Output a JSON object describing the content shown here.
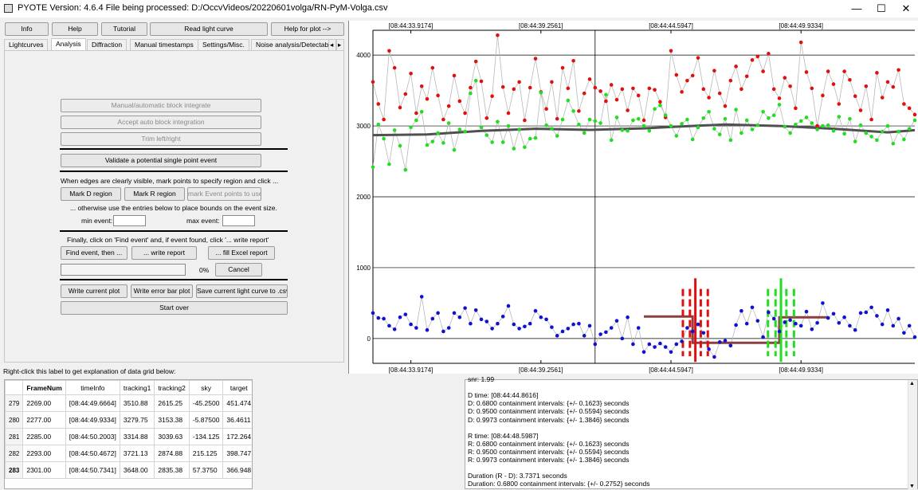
{
  "window": {
    "title": "PYOTE Version: 4.6.4  File being processed: D:/OccvVideos/20220601volga/RN-PyM-Volga.csv",
    "minimize": "—",
    "maximize": "☐",
    "close": "✕"
  },
  "toolbar": {
    "info": "Info",
    "help": "Help",
    "tutorial": "Tutorial",
    "read_light_curve": "Read light curve",
    "help_for_plot": "Help for plot -->"
  },
  "tabs": [
    "Lightcurves",
    "Analysis",
    "Diffraction",
    "Manual timestamps",
    "Settings/Misc.",
    "Noise analysis/Detectabili"
  ],
  "tab_scroll_left": "◂",
  "tab_scroll_right": "▸",
  "analysis": {
    "block_integrate": "Manual/automatic block integrate",
    "accept_auto_block": "Accept auto block integration",
    "trim": "Trim left/right",
    "validate_single": "Validate a potential single point event",
    "edges_text": "When edges are clearly visible, mark points to specify region and click ...",
    "mark_d": "Mark D region",
    "mark_r": "Mark R region",
    "mark_event": "mark Event points to use",
    "otherwise_text": "... otherwise use the entries below to place bounds on the event size.",
    "min_event_label": "min event:",
    "min_event_value": "",
    "max_event_label": "max event:",
    "max_event_value": "",
    "finally_text": "Finally, click on 'Find event' and, if event found, click '... write report'",
    "find_event": "Find event, then ...",
    "write_report": "... write report",
    "fill_excel": "... fill Excel report",
    "progress_percent": "0%",
    "progress_value": 0,
    "cancel": "Cancel",
    "write_plot": "Write current plot",
    "write_error_bar": "Write error bar plot",
    "save_csv": "Save current light curve to .csv",
    "start_over": "Start over"
  },
  "grid_label": "Right-click this label to get explanation of data grid below:",
  "grid": {
    "columns": [
      "FrameNum",
      "timeInfo",
      "tracking1",
      "tracking2",
      "sky",
      "target"
    ],
    "rows": [
      {
        "n": "279",
        "cells": [
          "2269.00",
          "[08:44:49.6664]",
          "3510.88",
          "2615.25",
          "-45.2500",
          "451.474"
        ]
      },
      {
        "n": "280",
        "cells": [
          "2277.00",
          "[08:44:49.9334]",
          "3279.75",
          "3153.38",
          "-5.87500",
          "36.4611"
        ]
      },
      {
        "n": "281",
        "cells": [
          "2285.00",
          "[08:44:50.2003]",
          "3314.88",
          "3039.63",
          "-134.125",
          "172.264"
        ]
      },
      {
        "n": "282",
        "cells": [
          "2293.00",
          "[08:44:50.4672]",
          "3721.13",
          "2874.88",
          "215.125",
          "398.747"
        ]
      },
      {
        "n": "283",
        "cells": [
          "2301.00",
          "[08:44:50.7341]",
          "3648.00",
          "2835.38",
          "57.3750",
          "366.948"
        ]
      }
    ]
  },
  "report": {
    "lines": [
      "snr: 1.99",
      "",
      "D time: [08:44:44.8616]",
      "D: 0.6800 containment intervals: {+/- 0.1623} seconds",
      "D: 0.9500 containment intervals: {+/- 0.5594} seconds",
      "D: 0.9973 containment intervals: {+/- 1.3846} seconds",
      "",
      "R time: [08:44:48.5987]",
      "R: 0.6800 containment intervals: {+/- 0.1623} seconds",
      "R: 0.9500 containment intervals: {+/- 0.5594} seconds",
      "R: 0.9973 containment intervals: {+/- 1.3846} seconds",
      "",
      "Duration (R - D): 3.7371 seconds",
      "Duration: 0.6800 containment intervals: {+/- 0.2752} seconds"
    ]
  },
  "chart_data": {
    "type": "scatter",
    "x_ticks": [
      "[08:44:33.9174]",
      "[08:44:39.2561]",
      "[08:44:44.5947]",
      "[08:44:49.9334]"
    ],
    "y_ticks": [
      0,
      1000,
      2000,
      3000,
      4000
    ],
    "xlim": [
      0,
      100
    ],
    "ylim": [
      -350,
      4350
    ],
    "colors": {
      "red": "#e01010",
      "green": "#22dd22",
      "blue": "#1010d0",
      "grey": "#b8b8b8",
      "smooth": "#505050",
      "step": "#8a4040"
    },
    "red_points": [
      [
        0,
        3620
      ],
      [
        1,
        3310
      ],
      [
        2,
        3090
      ],
      [
        3,
        4060
      ],
      [
        4,
        3820
      ],
      [
        5,
        3260
      ],
      [
        6,
        3450
      ],
      [
        7,
        3740
      ],
      [
        8,
        3180
      ],
      [
        9,
        3560
      ],
      [
        10,
        3380
      ],
      [
        11,
        3820
      ],
      [
        12,
        3430
      ],
      [
        13,
        3090
      ],
      [
        14,
        3280
      ],
      [
        15,
        3710
      ],
      [
        16,
        3350
      ],
      [
        17,
        3180
      ],
      [
        18,
        3540
      ],
      [
        19,
        3910
      ],
      [
        20,
        3630
      ],
      [
        21,
        3110
      ],
      [
        22,
        3420
      ],
      [
        23,
        4280
      ],
      [
        24,
        3550
      ],
      [
        25,
        3180
      ],
      [
        26,
        3520
      ],
      [
        27,
        3620
      ],
      [
        28,
        3080
      ],
      [
        29,
        3540
      ],
      [
        30,
        3950
      ],
      [
        31,
        3480
      ],
      [
        32,
        3240
      ],
      [
        33,
        3620
      ],
      [
        34,
        3100
      ],
      [
        35,
        3820
      ],
      [
        36,
        3530
      ],
      [
        37,
        3920
      ],
      [
        38,
        3210
      ],
      [
        39,
        3460
      ],
      [
        40,
        3660
      ],
      [
        41,
        3540
      ],
      [
        42,
        3490
      ],
      [
        43,
        3350
      ],
      [
        44,
        3580
      ],
      [
        45,
        3370
      ],
      [
        46,
        3520
      ],
      [
        47,
        3220
      ],
      [
        48,
        3530
      ],
      [
        49,
        3430
      ],
      [
        50,
        3080
      ],
      [
        51,
        3530
      ],
      [
        52,
        3510
      ],
      [
        53,
        3340
      ],
      [
        54,
        3120
      ],
      [
        55,
        4060
      ],
      [
        56,
        3720
      ],
      [
        57,
        3480
      ],
      [
        58,
        3640
      ],
      [
        59,
        3710
      ],
      [
        60,
        3960
      ],
      [
        61,
        3520
      ],
      [
        62,
        3400
      ],
      [
        63,
        3780
      ],
      [
        64,
        3460
      ],
      [
        65,
        3280
      ],
      [
        66,
        3640
      ],
      [
        67,
        3840
      ],
      [
        68,
        3520
      ],
      [
        69,
        3700
      ],
      [
        70,
        3930
      ],
      [
        71,
        3980
      ],
      [
        72,
        3770
      ],
      [
        73,
        4020
      ],
      [
        74,
        3520
      ],
      [
        75,
        3390
      ],
      [
        76,
        3680
      ],
      [
        77,
        3560
      ],
      [
        78,
        3250
      ],
      [
        79,
        4180
      ],
      [
        80,
        3760
      ],
      [
        81,
        3530
      ],
      [
        82,
        3000
      ],
      [
        83,
        3430
      ],
      [
        84,
        3770
      ],
      [
        85,
        3590
      ],
      [
        86,
        3310
      ],
      [
        87,
        3770
      ],
      [
        88,
        3650
      ],
      [
        89,
        3420
      ],
      [
        90,
        3220
      ],
      [
        91,
        3560
      ],
      [
        92,
        3090
      ],
      [
        93,
        3750
      ],
      [
        94,
        3400
      ],
      [
        95,
        3620
      ],
      [
        96,
        3550
      ],
      [
        97,
        3790
      ],
      [
        98,
        3310
      ],
      [
        99,
        3250
      ],
      [
        100,
        3160
      ]
    ],
    "green_points": [
      [
        0,
        2420
      ],
      [
        1,
        3020
      ],
      [
        2,
        2820
      ],
      [
        3,
        2460
      ],
      [
        4,
        2940
      ],
      [
        5,
        2720
      ],
      [
        6,
        2380
      ],
      [
        7,
        2980
      ],
      [
        8,
        3080
      ],
      [
        9,
        3200
      ],
      [
        10,
        2730
      ],
      [
        11,
        2780
      ],
      [
        12,
        2900
      ],
      [
        13,
        2760
      ],
      [
        14,
        3040
      ],
      [
        15,
        2660
      ],
      [
        16,
        2950
      ],
      [
        17,
        2920
      ],
      [
        18,
        3460
      ],
      [
        19,
        3640
      ],
      [
        20,
        2980
      ],
      [
        21,
        2870
      ],
      [
        22,
        2770
      ],
      [
        23,
        3060
      ],
      [
        24,
        2770
      ],
      [
        25,
        3000
      ],
      [
        26,
        2680
      ],
      [
        27,
        2950
      ],
      [
        28,
        2700
      ],
      [
        29,
        2820
      ],
      [
        30,
        2830
      ],
      [
        31,
        3470
      ],
      [
        32,
        3010
      ],
      [
        33,
        2960
      ],
      [
        34,
        2860
      ],
      [
        35,
        3090
      ],
      [
        36,
        3360
      ],
      [
        37,
        3210
      ],
      [
        38,
        3020
      ],
      [
        39,
        2900
      ],
      [
        40,
        3090
      ],
      [
        41,
        3070
      ],
      [
        42,
        3040
      ],
      [
        43,
        3440
      ],
      [
        44,
        2800
      ],
      [
        45,
        3120
      ],
      [
        46,
        2940
      ],
      [
        47,
        2930
      ],
      [
        48,
        3080
      ],
      [
        49,
        3100
      ],
      [
        50,
        3000
      ],
      [
        51,
        2930
      ],
      [
        52,
        3240
      ],
      [
        53,
        3290
      ],
      [
        54,
        3150
      ],
      [
        55,
        3000
      ],
      [
        56,
        2860
      ],
      [
        57,
        3030
      ],
      [
        58,
        3090
      ],
      [
        59,
        2810
      ],
      [
        60,
        2980
      ],
      [
        61,
        3110
      ],
      [
        62,
        3200
      ],
      [
        63,
        2960
      ],
      [
        64,
        2880
      ],
      [
        65,
        3100
      ],
      [
        66,
        2800
      ],
      [
        67,
        3230
      ],
      [
        68,
        2900
      ],
      [
        69,
        3080
      ],
      [
        70,
        2950
      ],
      [
        71,
        3010
      ],
      [
        72,
        3200
      ],
      [
        73,
        3110
      ],
      [
        74,
        3150
      ],
      [
        75,
        3300
      ],
      [
        76,
        2990
      ],
      [
        77,
        2900
      ],
      [
        78,
        3020
      ],
      [
        79,
        3070
      ],
      [
        80,
        3120
      ],
      [
        81,
        3040
      ],
      [
        82,
        2950
      ],
      [
        83,
        3000
      ],
      [
        84,
        3010
      ],
      [
        85,
        2930
      ],
      [
        86,
        3130
      ],
      [
        87,
        2890
      ],
      [
        88,
        3100
      ],
      [
        89,
        2780
      ],
      [
        90,
        3010
      ],
      [
        91,
        2900
      ],
      [
        92,
        2850
      ],
      [
        93,
        2800
      ],
      [
        94,
        2920
      ],
      [
        95,
        3000
      ],
      [
        96,
        2750
      ],
      [
        97,
        2920
      ],
      [
        98,
        2810
      ],
      [
        99,
        2960
      ],
      [
        100,
        3080
      ]
    ],
    "blue_points": [
      [
        0,
        360
      ],
      [
        1,
        290
      ],
      [
        2,
        280
      ],
      [
        3,
        180
      ],
      [
        4,
        130
      ],
      [
        5,
        300
      ],
      [
        6,
        340
      ],
      [
        7,
        200
      ],
      [
        8,
        150
      ],
      [
        9,
        590
      ],
      [
        10,
        120
      ],
      [
        11,
        280
      ],
      [
        12,
        360
      ],
      [
        13,
        100
      ],
      [
        14,
        150
      ],
      [
        15,
        360
      ],
      [
        16,
        300
      ],
      [
        17,
        430
      ],
      [
        18,
        210
      ],
      [
        19,
        400
      ],
      [
        20,
        270
      ],
      [
        21,
        240
      ],
      [
        22,
        140
      ],
      [
        23,
        210
      ],
      [
        24,
        310
      ],
      [
        25,
        460
      ],
      [
        26,
        200
      ],
      [
        27,
        140
      ],
      [
        28,
        170
      ],
      [
        29,
        210
      ],
      [
        30,
        390
      ],
      [
        31,
        300
      ],
      [
        32,
        270
      ],
      [
        33,
        160
      ],
      [
        34,
        40
      ],
      [
        35,
        100
      ],
      [
        36,
        140
      ],
      [
        37,
        200
      ],
      [
        38,
        210
      ],
      [
        39,
        40
      ],
      [
        40,
        180
      ],
      [
        41,
        -80
      ],
      [
        42,
        60
      ],
      [
        43,
        90
      ],
      [
        44,
        150
      ],
      [
        45,
        250
      ],
      [
        46,
        0
      ],
      [
        47,
        300
      ],
      [
        48,
        -80
      ],
      [
        49,
        150
      ],
      [
        50,
        -190
      ],
      [
        51,
        -80
      ],
      [
        52,
        -120
      ],
      [
        53,
        -70
      ],
      [
        54,
        -120
      ],
      [
        55,
        -190
      ],
      [
        56,
        -80
      ],
      [
        57,
        -40
      ],
      [
        58,
        150
      ],
      [
        59,
        100
      ],
      [
        60,
        200
      ],
      [
        61,
        80
      ],
      [
        62,
        -150
      ],
      [
        63,
        -260
      ],
      [
        64,
        -50
      ],
      [
        65,
        -30
      ],
      [
        66,
        -100
      ],
      [
        67,
        190
      ],
      [
        68,
        390
      ],
      [
        69,
        210
      ],
      [
        70,
        440
      ],
      [
        71,
        250
      ],
      [
        72,
        20
      ],
      [
        73,
        370
      ],
      [
        74,
        280
      ],
      [
        75,
        100
      ],
      [
        76,
        230
      ],
      [
        77,
        260
      ],
      [
        78,
        210
      ],
      [
        79,
        180
      ],
      [
        80,
        380
      ],
      [
        81,
        130
      ],
      [
        82,
        220
      ],
      [
        83,
        500
      ],
      [
        84,
        290
      ],
      [
        85,
        350
      ],
      [
        86,
        220
      ],
      [
        87,
        300
      ],
      [
        88,
        180
      ],
      [
        89,
        120
      ],
      [
        90,
        360
      ],
      [
        91,
        370
      ],
      [
        92,
        440
      ],
      [
        93,
        320
      ],
      [
        94,
        200
      ],
      [
        95,
        400
      ],
      [
        96,
        180
      ],
      [
        97,
        280
      ],
      [
        98,
        80
      ],
      [
        99,
        180
      ],
      [
        100,
        20
      ]
    ],
    "smooth_curve": [
      [
        0,
        2870
      ],
      [
        10,
        2880
      ],
      [
        20,
        2930
      ],
      [
        30,
        2960
      ],
      [
        40,
        2945
      ],
      [
        50,
        2965
      ],
      [
        56,
        2990
      ],
      [
        65,
        3020
      ],
      [
        75,
        3000
      ],
      [
        85,
        2960
      ],
      [
        95,
        2910
      ],
      [
        100,
        2940
      ]
    ],
    "step_line": [
      [
        50,
        310
      ],
      [
        59,
        310
      ],
      [
        59,
        -60
      ],
      [
        75,
        -60
      ],
      [
        75,
        300
      ],
      [
        84,
        300
      ]
    ],
    "d_edges": {
      "center": 59.5,
      "inner": [
        58.5,
        60.5
      ],
      "outer": [
        57.2,
        61.8
      ]
    },
    "r_edges": {
      "center": 75.3,
      "inner": [
        74.3,
        76.3
      ],
      "outer": [
        72.9,
        77.7
      ]
    },
    "vertical_crosshair": 41
  }
}
